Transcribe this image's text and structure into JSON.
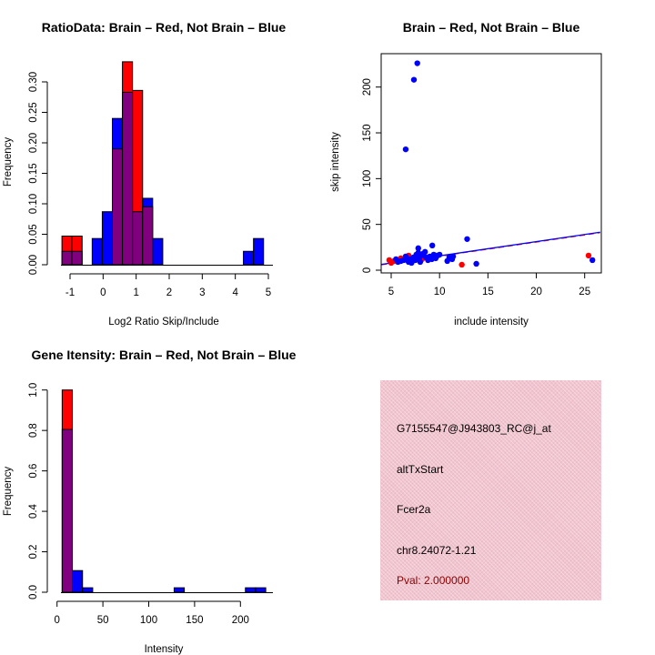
{
  "colors": {
    "red": "#ff0000",
    "blue": "#0000ff",
    "purple": "#800080",
    "pval": "#8b0000"
  },
  "chart_data": [
    {
      "type": "bar",
      "title": "RatioData: Brain – Red, Not Brain – Blue",
      "xlabel": "Log2 Ratio Skip/Include",
      "ylabel": "Frequency",
      "xticks": [
        -1,
        0,
        1,
        2,
        3,
        4,
        5
      ],
      "yticks": [
        "0.00",
        "0.05",
        "0.10",
        "0.15",
        "0.20",
        "0.25",
        "0.30"
      ],
      "ylim": [
        0,
        0.33
      ],
      "bin_start": -1.245,
      "bin_width": 0.305,
      "series": [
        {
          "name": "Brain",
          "color": "red",
          "values": [
            0.047,
            0.047,
            0,
            0,
            0,
            0.19,
            0.333,
            0.286,
            0.095,
            0,
            0,
            0,
            0,
            0,
            0,
            0,
            0,
            0,
            0,
            0
          ]
        },
        {
          "name": "Not Brain",
          "color": "blue",
          "values": [
            0.022,
            0.022,
            0,
            0.043,
            0.087,
            0.24,
            0.283,
            0.087,
            0.109,
            0.043,
            0,
            0,
            0,
            0,
            0,
            0,
            0,
            0,
            0.022,
            0.043
          ]
        }
      ]
    },
    {
      "type": "scatter",
      "title": "Brain – Red, Not Brain – Blue",
      "xlabel": "include intensity",
      "ylabel": "skip intensity",
      "xticks": [
        5,
        10,
        15,
        20,
        25
      ],
      "yticks": [
        0,
        50,
        100,
        150,
        200
      ],
      "xlim": [
        4,
        26.6
      ],
      "ylim": [
        -2,
        236
      ],
      "fit_lines": [
        {
          "color": "red",
          "from": [
            4,
            6
          ],
          "to": [
            26.6,
            41
          ]
        },
        {
          "color": "blue",
          "from": [
            4,
            6.3
          ],
          "to": [
            26.6,
            41.5
          ]
        }
      ],
      "series": [
        {
          "name": "Brain",
          "color": "red",
          "points": [
            [
              4.8,
              11
            ],
            [
              5.0,
              8
            ],
            [
              5.3,
              10
            ],
            [
              6.0,
              13
            ],
            [
              6.8,
              16
            ],
            [
              7.2,
              10
            ],
            [
              8.2,
              12
            ],
            [
              12.3,
              6
            ],
            [
              25.4,
              16
            ]
          ]
        },
        {
          "name": "Not Brain",
          "color": "blue",
          "points": [
            [
              7.7,
              226
            ],
            [
              7.35,
              208
            ],
            [
              6.5,
              132
            ],
            [
              12.85,
              34
            ],
            [
              9.25,
              27
            ],
            [
              7.8,
              24
            ],
            [
              13.8,
              7
            ],
            [
              25.8,
              11
            ],
            [
              5.5,
              12
            ],
            [
              5.7,
              9
            ],
            [
              6.0,
              10
            ],
            [
              6.3,
              11
            ],
            [
              6.5,
              15
            ],
            [
              6.6,
              13
            ],
            [
              6.8,
              9
            ],
            [
              7.0,
              12
            ],
            [
              7.1,
              8
            ],
            [
              7.3,
              14
            ],
            [
              7.5,
              11
            ],
            [
              7.6,
              17
            ],
            [
              7.8,
              19
            ],
            [
              7.9,
              13
            ],
            [
              8.0,
              9
            ],
            [
              8.1,
              16
            ],
            [
              8.3,
              18
            ],
            [
              8.5,
              20
            ],
            [
              8.6,
              14
            ],
            [
              8.8,
              11
            ],
            [
              9.0,
              15
            ],
            [
              9.2,
              12
            ],
            [
              9.4,
              17
            ],
            [
              9.6,
              13
            ],
            [
              9.8,
              16
            ],
            [
              10.0,
              17
            ],
            [
              10.8,
              10
            ],
            [
              11.0,
              14
            ],
            [
              11.3,
              12
            ],
            [
              11.4,
              15
            ]
          ]
        }
      ]
    },
    {
      "type": "bar",
      "title": "Gene Itensity: Brain – Red, Not Brain – Blue",
      "xlabel": "Intensity",
      "ylabel": "Frequency",
      "xticks": [
        0,
        50,
        100,
        150,
        200
      ],
      "yticks": [
        "0.0",
        "0.2",
        "0.4",
        "0.6",
        "0.8",
        "1.0"
      ],
      "ylim": [
        0,
        1.0
      ],
      "bin_start": 5.6,
      "bin_width": 11.1,
      "series": [
        {
          "name": "Brain",
          "color": "red",
          "values": [
            1.0,
            0,
            0,
            0,
            0,
            0,
            0,
            0,
            0,
            0,
            0,
            0,
            0,
            0,
            0,
            0,
            0,
            0,
            0,
            0
          ]
        },
        {
          "name": "Not Brain",
          "color": "blue",
          "values": [
            0.805,
            0.107,
            0.022,
            0,
            0,
            0,
            0,
            0,
            0,
            0,
            0,
            0.022,
            0,
            0,
            0,
            0,
            0,
            0,
            0.022,
            0.022
          ]
        }
      ]
    }
  ],
  "info": {
    "probe": "G7155547@J943803_RC@j_at",
    "event": "altTxStart",
    "gene": "Fcer2a",
    "location": "chr8.24072-1.21",
    "pval": "Pval: 2.000000"
  }
}
